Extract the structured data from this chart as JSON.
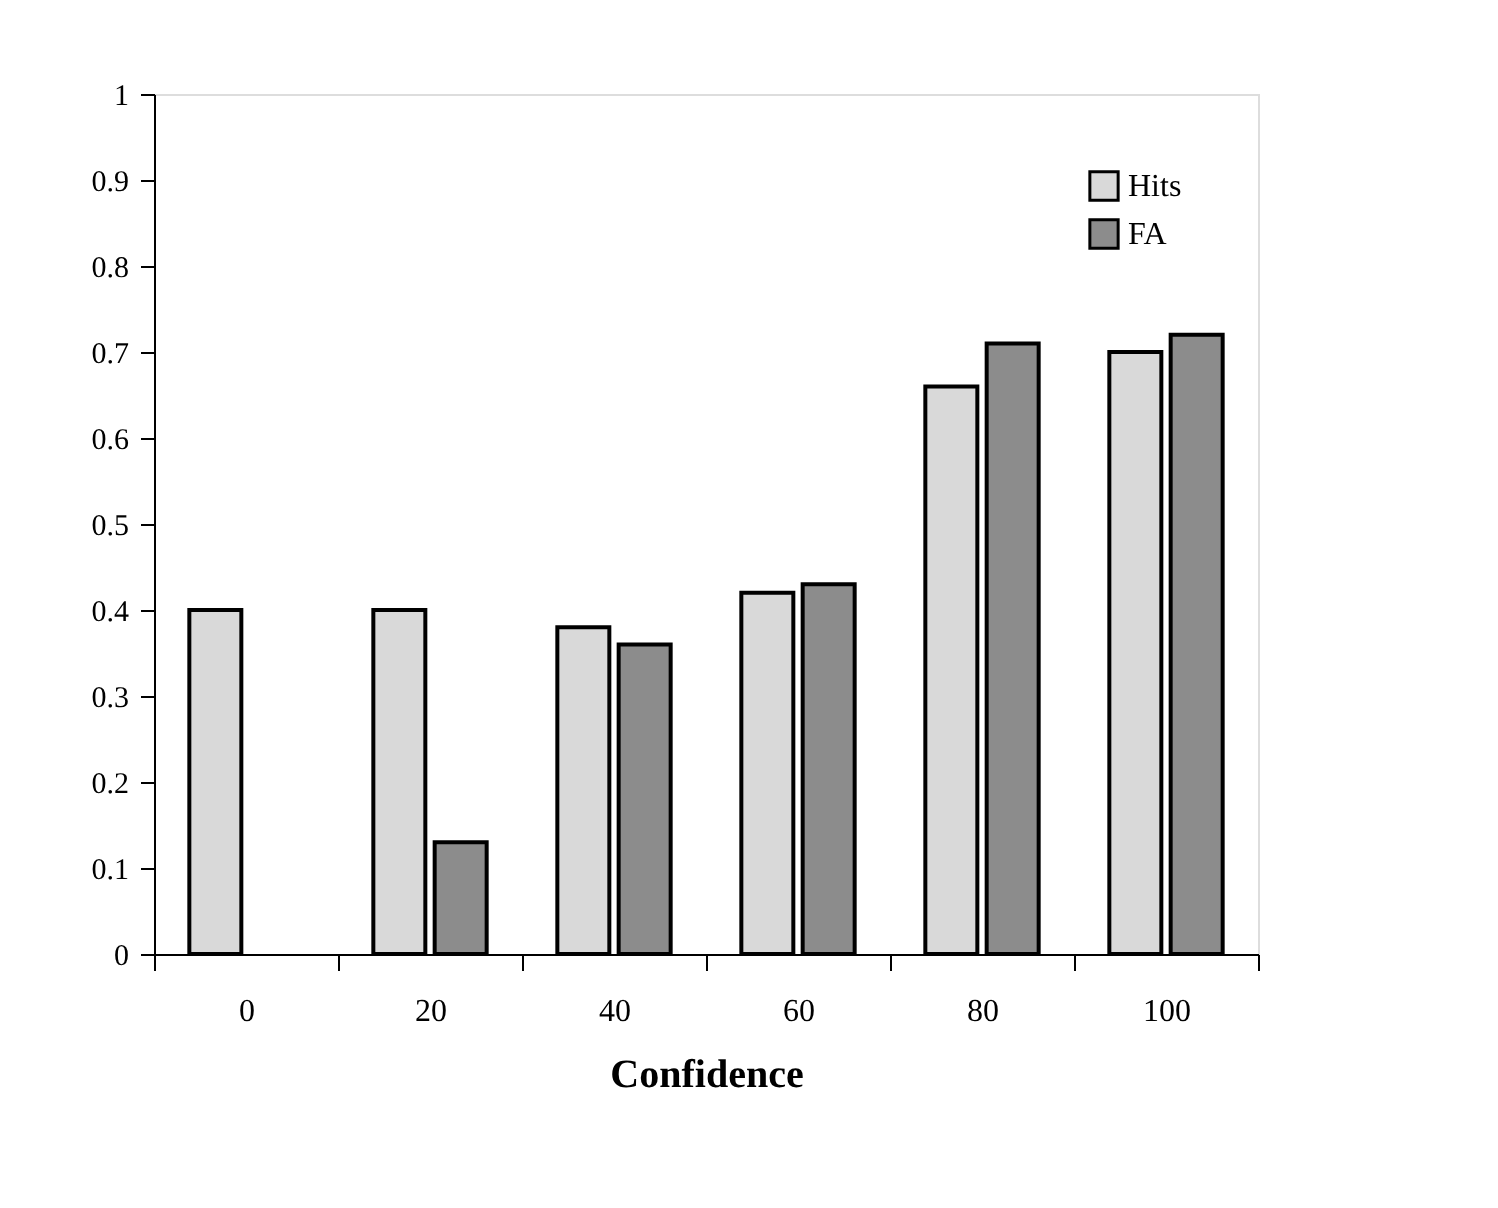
{
  "chart_data": {
    "type": "bar",
    "xlabel": "Confidence",
    "categories": [
      "0",
      "20",
      "40",
      "60",
      "80",
      "100"
    ],
    "series": [
      {
        "name": "Hits",
        "color": "#d9d9d9",
        "values": [
          0.4,
          0.4,
          0.38,
          0.42,
          0.66,
          0.7
        ]
      },
      {
        "name": "FA",
        "color": "#8c8c8c",
        "values": [
          null,
          0.13,
          0.36,
          0.43,
          0.71,
          0.72
        ]
      }
    ],
    "ylim": [
      0,
      1
    ],
    "yticks": [
      0,
      0.1,
      0.2,
      0.3,
      0.4,
      0.5,
      0.6,
      0.7,
      0.8,
      0.9,
      1
    ],
    "grid": false,
    "legend": "top right"
  }
}
